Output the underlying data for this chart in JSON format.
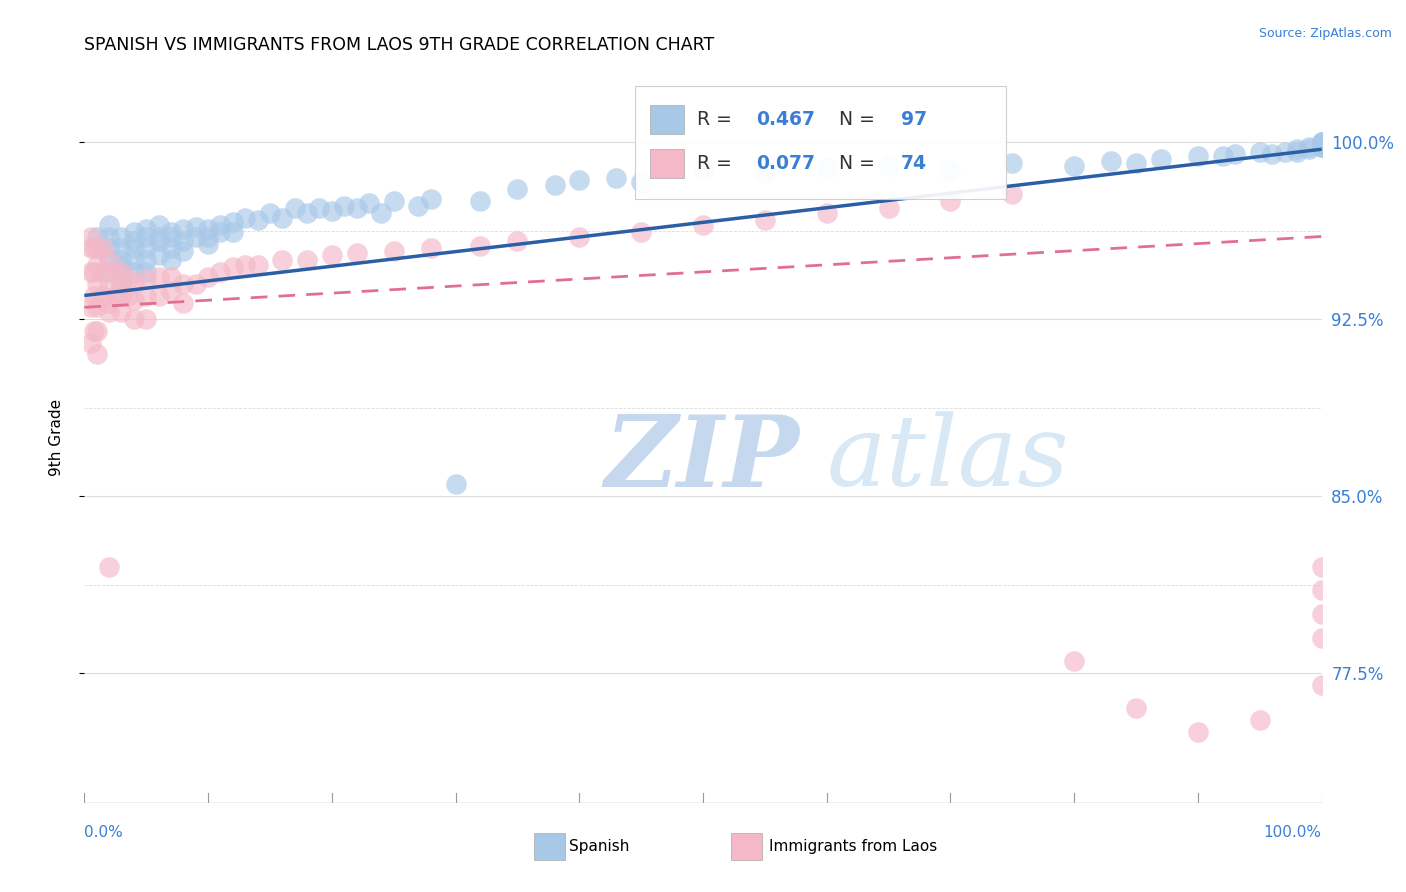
{
  "title": "SPANISH VS IMMIGRANTS FROM LAOS 9TH GRADE CORRELATION CHART",
  "source": "Source: ZipAtlas.com",
  "ylabel": "9th Grade",
  "ytick_labels": [
    "77.5%",
    "85.0%",
    "92.5%",
    "100.0%"
  ],
  "ytick_values": [
    0.775,
    0.85,
    0.925,
    1.0
  ],
  "xlim": [
    0.0,
    1.0
  ],
  "ylim": [
    0.72,
    1.03
  ],
  "blue_R": 0.467,
  "blue_N": 97,
  "pink_R": 0.077,
  "pink_N": 74,
  "blue_color": "#a8c8e8",
  "pink_color": "#f4b8c8",
  "blue_line_color": "#2b5fa5",
  "pink_line_color": "#e07090",
  "legend_label_blue": "Spanish",
  "legend_label_pink": "Immigrants from Laos",
  "blue_line_x0": 0.0,
  "blue_line_y0": 0.935,
  "blue_line_x1": 1.0,
  "blue_line_y1": 0.997,
  "pink_line_x0": 0.0,
  "pink_line_y0": 0.93,
  "pink_line_x1": 1.0,
  "pink_line_y1": 0.96,
  "blue_scatter_x": [
    0.01,
    0.01,
    0.02,
    0.02,
    0.02,
    0.02,
    0.02,
    0.03,
    0.03,
    0.03,
    0.03,
    0.03,
    0.03,
    0.04,
    0.04,
    0.04,
    0.04,
    0.04,
    0.05,
    0.05,
    0.05,
    0.05,
    0.05,
    0.06,
    0.06,
    0.06,
    0.06,
    0.07,
    0.07,
    0.07,
    0.07,
    0.08,
    0.08,
    0.08,
    0.09,
    0.09,
    0.1,
    0.1,
    0.1,
    0.11,
    0.11,
    0.12,
    0.12,
    0.13,
    0.14,
    0.15,
    0.16,
    0.17,
    0.18,
    0.19,
    0.2,
    0.21,
    0.22,
    0.23,
    0.24,
    0.25,
    0.27,
    0.28,
    0.3,
    0.32,
    0.35,
    0.38,
    0.4,
    0.43,
    0.45,
    0.5,
    0.55,
    0.6,
    0.65,
    0.7,
    0.75,
    0.8,
    0.83,
    0.85,
    0.87,
    0.9,
    0.92,
    0.93,
    0.95,
    0.96,
    0.97,
    0.98,
    0.98,
    0.99,
    0.99,
    1.0,
    1.0,
    1.0,
    1.0,
    1.0,
    1.0,
    1.0,
    1.0,
    1.0,
    1.0,
    1.0,
    1.0
  ],
  "blue_scatter_y": [
    0.96,
    0.955,
    0.965,
    0.96,
    0.955,
    0.95,
    0.945,
    0.96,
    0.955,
    0.95,
    0.948,
    0.945,
    0.94,
    0.962,
    0.958,
    0.955,
    0.95,
    0.945,
    0.963,
    0.96,
    0.955,
    0.95,
    0.945,
    0.965,
    0.96,
    0.958,
    0.952,
    0.962,
    0.96,
    0.955,
    0.95,
    0.963,
    0.958,
    0.954,
    0.964,
    0.96,
    0.963,
    0.96,
    0.957,
    0.965,
    0.962,
    0.966,
    0.962,
    0.968,
    0.967,
    0.97,
    0.968,
    0.972,
    0.97,
    0.972,
    0.971,
    0.973,
    0.972,
    0.974,
    0.97,
    0.975,
    0.973,
    0.976,
    0.855,
    0.975,
    0.98,
    0.982,
    0.984,
    0.985,
    0.983,
    0.988,
    0.987,
    0.989,
    0.99,
    0.988,
    0.991,
    0.99,
    0.992,
    0.991,
    0.993,
    0.994,
    0.994,
    0.995,
    0.996,
    0.995,
    0.996,
    0.997,
    0.996,
    0.997,
    0.998,
    0.998,
    0.998,
    0.999,
    0.999,
    1.0,
    0.999,
    0.998,
    0.999,
    1.0,
    0.999,
    1.0,
    0.999
  ],
  "pink_scatter_x": [
    0.005,
    0.005,
    0.005,
    0.005,
    0.005,
    0.008,
    0.008,
    0.008,
    0.008,
    0.01,
    0.01,
    0.01,
    0.01,
    0.01,
    0.01,
    0.015,
    0.015,
    0.015,
    0.02,
    0.02,
    0.02,
    0.02,
    0.02,
    0.025,
    0.025,
    0.03,
    0.03,
    0.03,
    0.03,
    0.035,
    0.035,
    0.04,
    0.04,
    0.04,
    0.05,
    0.05,
    0.05,
    0.06,
    0.06,
    0.07,
    0.07,
    0.08,
    0.08,
    0.09,
    0.1,
    0.11,
    0.12,
    0.13,
    0.14,
    0.16,
    0.18,
    0.2,
    0.22,
    0.25,
    0.28,
    0.32,
    0.35,
    0.4,
    0.45,
    0.5,
    0.55,
    0.6,
    0.65,
    0.7,
    0.75,
    0.8,
    0.85,
    0.9,
    0.95,
    1.0,
    1.0,
    1.0,
    1.0,
    1.0
  ],
  "pink_scatter_y": [
    0.96,
    0.955,
    0.945,
    0.93,
    0.915,
    0.955,
    0.945,
    0.935,
    0.92,
    0.955,
    0.948,
    0.94,
    0.93,
    0.92,
    0.91,
    0.955,
    0.945,
    0.935,
    0.95,
    0.94,
    0.932,
    0.928,
    0.82,
    0.945,
    0.935,
    0.945,
    0.94,
    0.935,
    0.928,
    0.942,
    0.935,
    0.94,
    0.933,
    0.925,
    0.942,
    0.935,
    0.925,
    0.943,
    0.935,
    0.943,
    0.937,
    0.94,
    0.932,
    0.94,
    0.943,
    0.945,
    0.947,
    0.948,
    0.948,
    0.95,
    0.95,
    0.952,
    0.953,
    0.954,
    0.955,
    0.956,
    0.958,
    0.96,
    0.962,
    0.965,
    0.967,
    0.97,
    0.972,
    0.975,
    0.978,
    0.78,
    0.76,
    0.75,
    0.755,
    0.77,
    0.79,
    0.8,
    0.81,
    0.82
  ],
  "watermark_zip": "ZIP",
  "watermark_atlas": "atlas",
  "grid_color": "#dddddd",
  "grid_dashed_color": "#dddddd"
}
